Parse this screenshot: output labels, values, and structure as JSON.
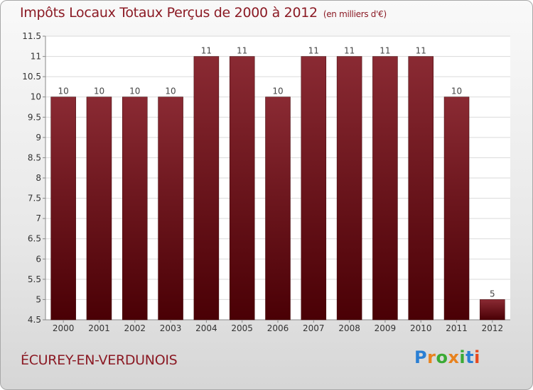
{
  "colors": {
    "bar": "#6e0f16",
    "title": "#8b1a24",
    "grid": "#dadada",
    "axis_text": "#333333"
  },
  "header": {
    "title": "Impôts Locaux Totaux Perçus de 2000 à 2012",
    "unit": "(en milliers d'€)"
  },
  "footer": {
    "commune": "ÉCUREY-EN-VERDUNOIS",
    "logo_text": "Proxiti"
  },
  "chart_data": {
    "type": "bar",
    "title": "Impôts Locaux Totaux Perçus de 2000 à 2012",
    "unit": "(en milliers d'€)",
    "categories": [
      "2000",
      "2001",
      "2002",
      "2003",
      "2004",
      "2005",
      "2006",
      "2007",
      "2008",
      "2009",
      "2010",
      "2011",
      "2012"
    ],
    "values": [
      10,
      10,
      10,
      10,
      11,
      11,
      10,
      11,
      11,
      11,
      11,
      10,
      5
    ],
    "data_labels": [
      "10",
      "10",
      "10",
      "10",
      "11",
      "11",
      "10",
      "11",
      "11",
      "11",
      "11",
      "10",
      "5"
    ],
    "ylim": [
      4.5,
      11.5
    ],
    "yticks": [
      4.5,
      5,
      5.5,
      6,
      6.5,
      7,
      7.5,
      8,
      8.5,
      9,
      9.5,
      10,
      10.5,
      11,
      11.5
    ],
    "ytick_labels": [
      "4.5",
      "5",
      "5.5",
      "6",
      "6.5",
      "7",
      "7.5",
      "8",
      "8.5",
      "9",
      "9.5",
      "10",
      "10.5",
      "11",
      "11.5"
    ],
    "grid": true,
    "xlabel": "",
    "ylabel": ""
  }
}
